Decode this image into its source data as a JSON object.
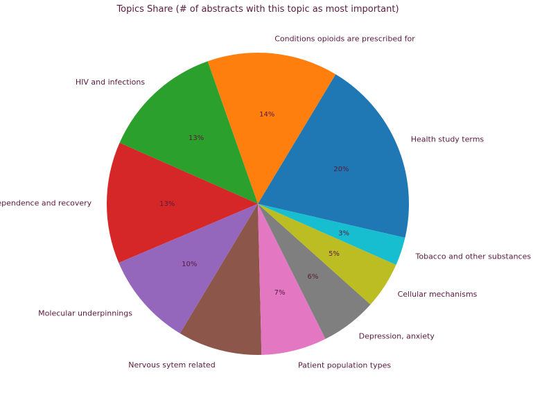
{
  "chart_data": {
    "type": "pie",
    "title": "Topics Share (# of abstracts with this topic as most important)",
    "labels": [
      "Health study terms",
      "Conditions opioids are prescribed for",
      "HIV and infections",
      "Dependence and recovery",
      "Molecular underpinnings",
      "Nervous sytem related",
      "Patient population types",
      "Depression, anxiety",
      "Cellular mechanisms",
      "Tobacco and other substances"
    ],
    "values": [
      20,
      14,
      13,
      13,
      10,
      9,
      7,
      6,
      5,
      3
    ],
    "percent_labels": [
      "20%",
      "14%",
      "13%",
      "13%",
      "10%",
      "",
      "7%",
      "6%",
      "5%",
      "3%"
    ],
    "colors": [
      "#1f77b4",
      "#ff7f0e",
      "#2ca02c",
      "#d62728",
      "#9467bd",
      "#8c564b",
      "#e377c2",
      "#7f7f7f",
      "#bcbd22",
      "#17becf"
    ],
    "start_angle_deg": -13,
    "direction": "counterclockwise",
    "title_color": "#5a1a3c",
    "label_color": "#5a1a3c",
    "percent_color": "#5a1a3c"
  }
}
